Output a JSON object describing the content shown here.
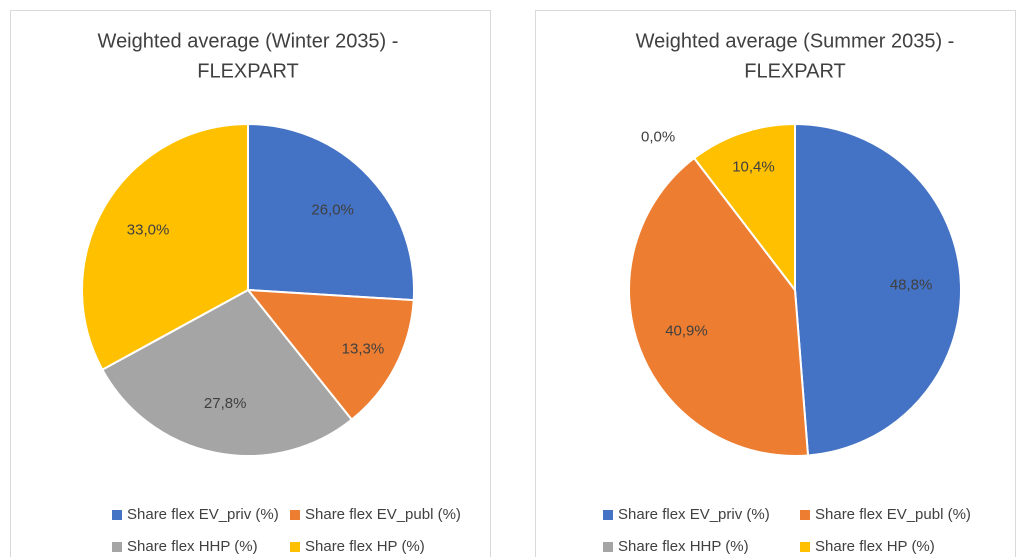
{
  "chart_data": [
    {
      "type": "pie",
      "title": "Weighted average (Winter 2035) -",
      "subtitle": "FLEXPART",
      "categories": [
        "Share flex EV_priv (%)",
        "Share flex EV_publ (%)",
        "Share flex HHP (%)",
        "Share flex HP (%)"
      ],
      "values": [
        26.0,
        13.3,
        27.8,
        33.0
      ],
      "value_labels": [
        "26,0%",
        "13,3%",
        "27,8%",
        "33,0%"
      ],
      "colors": [
        "#4472c4",
        "#ed7d31",
        "#a5a5a5",
        "#ffc000"
      ]
    },
    {
      "type": "pie",
      "title": "Weighted average (Summer 2035) -",
      "subtitle": "FLEXPART",
      "categories": [
        "Share flex EV_priv (%)",
        "Share flex EV_publ (%)",
        "Share flex HHP (%)",
        "Share flex HP (%)"
      ],
      "values": [
        48.8,
        40.9,
        0.0,
        10.4
      ],
      "value_labels": [
        "48,8%",
        "40,9%",
        "0,0%",
        "10,4%"
      ],
      "colors": [
        "#4472c4",
        "#ed7d31",
        "#a5a5a5",
        "#ffc000"
      ]
    }
  ]
}
